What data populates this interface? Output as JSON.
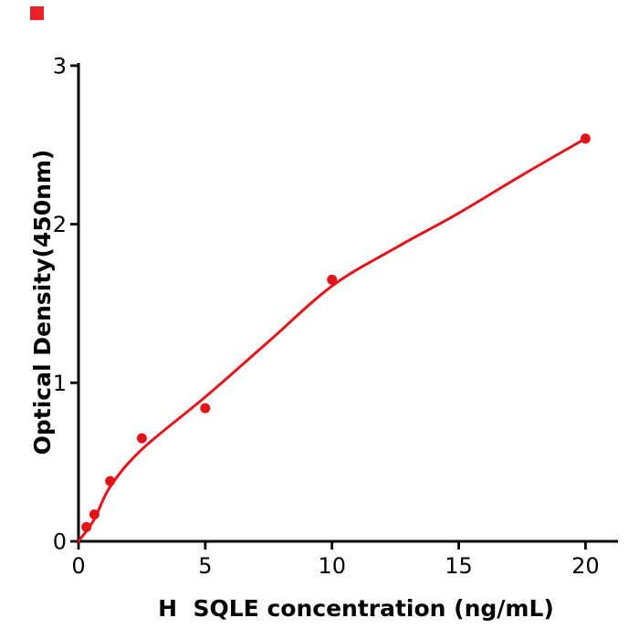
{
  "badge": {
    "color": "#e8212b"
  },
  "chart_data": {
    "type": "scatter",
    "title": "",
    "xlabel": "H  SQLE concentration (ng/mL)",
    "ylabel": "Optical Density(450nm)",
    "points": {
      "x": [
        0.313,
        0.625,
        1.25,
        2.5,
        5,
        10,
        20
      ],
      "y": [
        0.09,
        0.17,
        0.38,
        0.65,
        0.84,
        1.65,
        2.54
      ]
    },
    "fit_curve": {
      "x": [
        0,
        0.625,
        1.25,
        2.5,
        5,
        7.5,
        10,
        12.5,
        15,
        17.5,
        20
      ],
      "y": [
        0,
        0.14,
        0.345,
        0.58,
        0.91,
        1.26,
        1.61,
        1.85,
        2.07,
        2.31,
        2.54
      ]
    },
    "xticks": [
      "0",
      "5",
      "10",
      "15",
      "20"
    ],
    "xtick_values": [
      0,
      5,
      10,
      15,
      20
    ],
    "yticks": [
      "0",
      "1",
      "2",
      "3"
    ],
    "ytick_values": [
      0,
      1,
      2,
      3
    ],
    "xlim": [
      0,
      21.3
    ],
    "ylim": [
      0,
      3.02
    ],
    "grid": false,
    "legend": "none",
    "point_color": "#e41319",
    "line_color": "#e41319",
    "axis_color": "#000000",
    "background": "#ffffff"
  }
}
